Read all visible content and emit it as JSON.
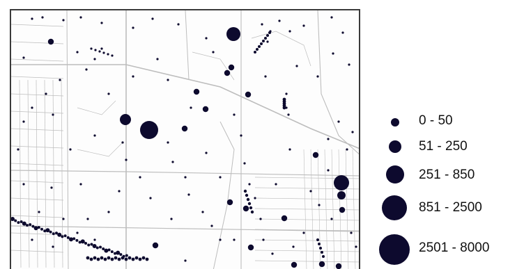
{
  "map": {
    "symbol_color": "#0d0a2e",
    "road_color": "#bdbdbd",
    "frame_color": "#3a3a3a"
  },
  "legend": {
    "classes": [
      {
        "label": "0 - 50",
        "size_rank": 1
      },
      {
        "label": "51 - 250",
        "size_rank": 2
      },
      {
        "label": "251 - 850",
        "size_rank": 3
      },
      {
        "label": "851 - 2500",
        "size_rank": 4
      },
      {
        "label": "2501 - 8000",
        "size_rank": 5
      }
    ]
  }
}
